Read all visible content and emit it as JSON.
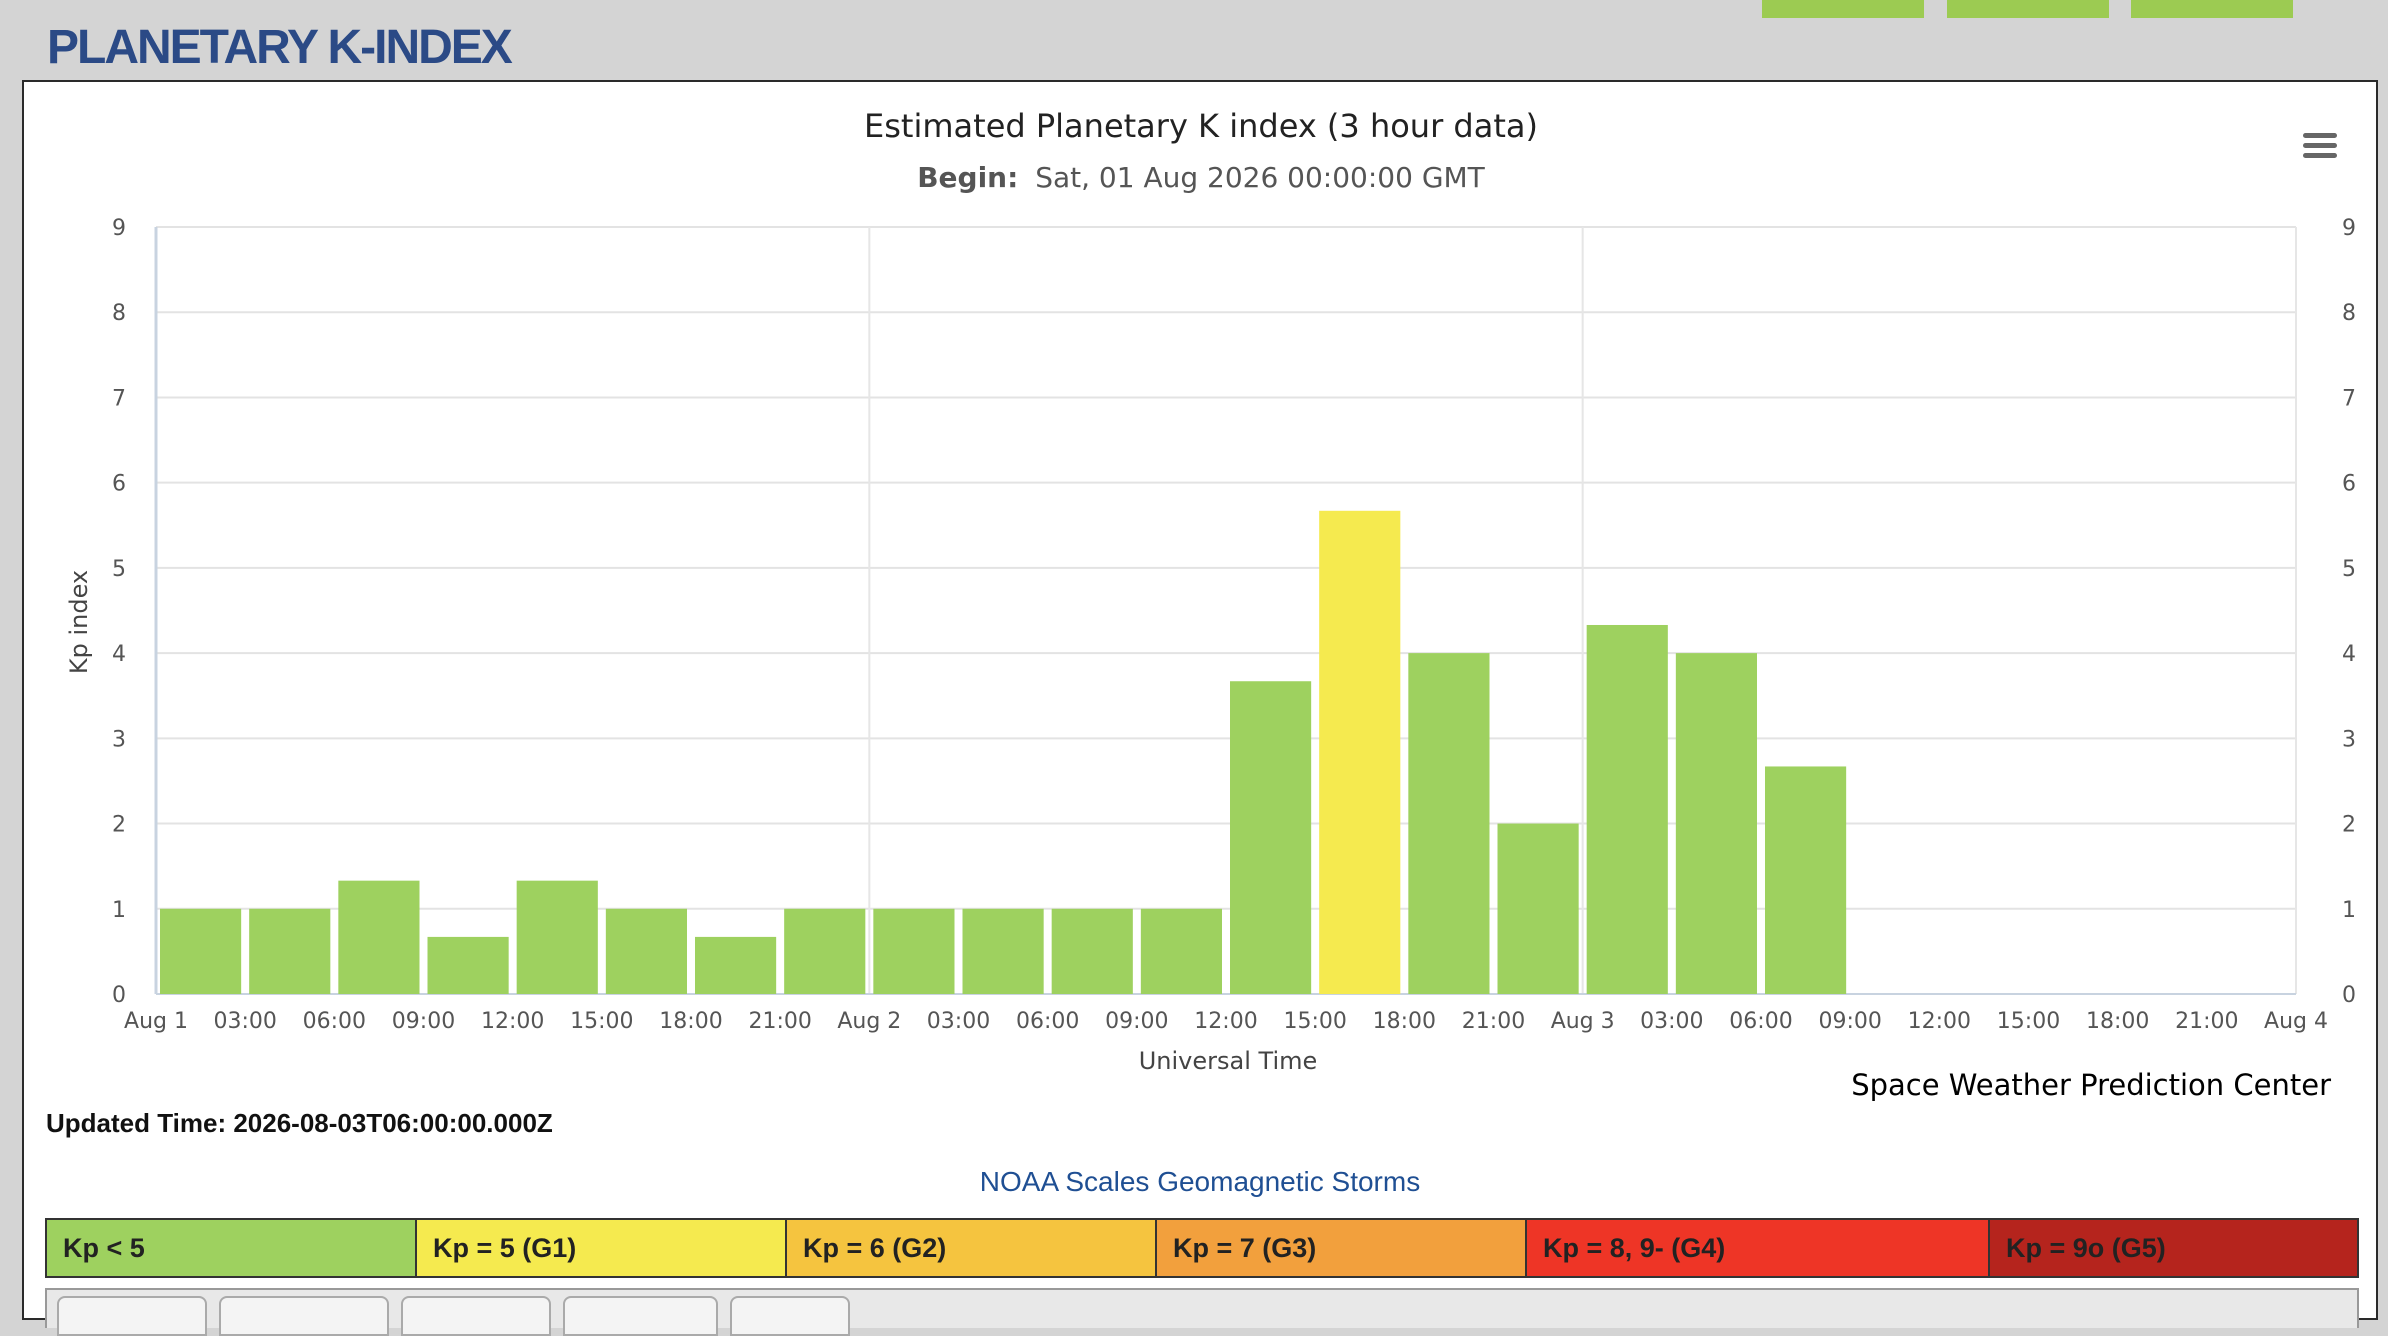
{
  "page": {
    "title": "PLANETARY K-INDEX"
  },
  "chart_data": {
    "type": "bar",
    "title": "Estimated Planetary K index (3 hour data)",
    "subtitle_label": "Begin:",
    "subtitle_value": "Sat, 01 Aug 2026 00:00:00 GMT",
    "xlabel": "Universal Time",
    "ylabel": "Kp index",
    "ylim": [
      0,
      9
    ],
    "yticks": [
      0,
      1,
      2,
      3,
      4,
      5,
      6,
      7,
      8,
      9
    ],
    "x_tick_labels": [
      "Aug 1",
      "03:00",
      "06:00",
      "09:00",
      "12:00",
      "15:00",
      "18:00",
      "21:00",
      "Aug 2",
      "03:00",
      "06:00",
      "09:00",
      "12:00",
      "15:00",
      "18:00",
      "21:00",
      "Aug 3",
      "03:00",
      "06:00",
      "09:00",
      "12:00",
      "15:00",
      "18:00",
      "21:00",
      "Aug 4"
    ],
    "right_axis": true,
    "grid": true,
    "values": [
      1.0,
      1.0,
      1.33,
      0.67,
      1.33,
      1.0,
      0.67,
      1.0,
      1.0,
      1.0,
      1.0,
      1.0,
      3.67,
      5.67,
      4.0,
      2.0,
      4.33,
      4.0,
      2.67
    ],
    "colors": {
      "kp_below_5": "#9ed15f",
      "kp_5": "#f5ea4f",
      "kp_6": "#f5c43f"
    },
    "credit": "Space Weather Prediction Center"
  },
  "updated": {
    "label": "Updated Time:",
    "value": "2026-08-03T06:00:00.000Z"
  },
  "scales_link": "NOAA Scales Geomagnetic Storms",
  "legend": [
    {
      "label": "Kp < 5",
      "color": "#9ed15f"
    },
    {
      "label": "Kp = 5 (G1)",
      "color": "#f5ea4f"
    },
    {
      "label": "Kp = 6 (G2)",
      "color": "#f5c43f"
    },
    {
      "label": "Kp = 7 (G3)",
      "color": "#f2a03d"
    },
    {
      "label": "Kp = 8, 9- (G4)",
      "color": "#ee3526"
    },
    {
      "label": "Kp = 9o (G5)",
      "color": "#b5241d"
    }
  ],
  "icons": {
    "menu": "hamburger-menu-icon"
  }
}
